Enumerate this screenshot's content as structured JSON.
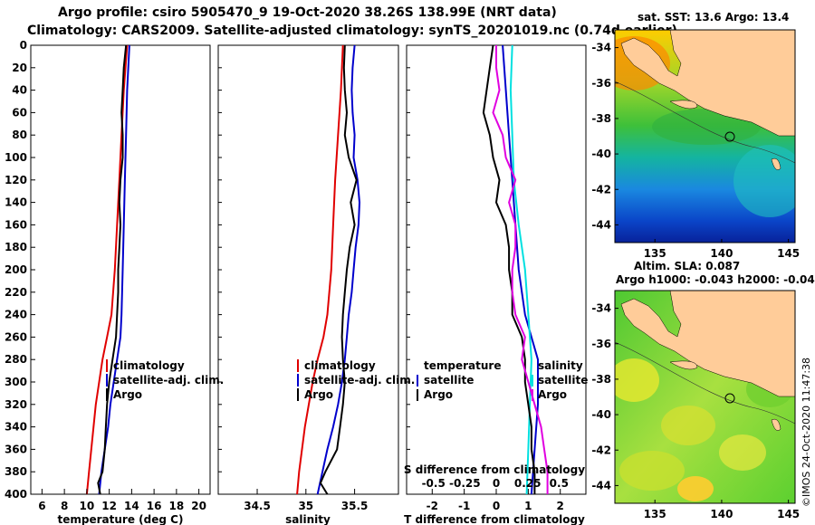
{
  "header": {
    "title_line1": "Argo profile: csiro 5905470_9 19-Oct-2020 38.26S 138.99E (NRT data)",
    "title_line2": "Climatology: CARS2009. Satellite-adjusted climatology: synTS_20201019.nc (0.74d earlier)"
  },
  "colors": {
    "argo": "#000000",
    "climatology": "#e00000",
    "satellite": "#0000cc",
    "salinity_diff": "#00e0e0",
    "temp_diff": "#e000e0"
  },
  "chart_data": [
    {
      "id": "temperature",
      "type": "line",
      "xlabel": "temperature (deg C)",
      "ylabel": "",
      "xlim": [
        5,
        21
      ],
      "ylim": [
        400,
        0
      ],
      "xticks": [
        6,
        8,
        10,
        12,
        14,
        16,
        18,
        20
      ],
      "yticks": [
        0,
        20,
        40,
        60,
        80,
        100,
        120,
        140,
        160,
        180,
        200,
        220,
        240,
        260,
        280,
        300,
        320,
        340,
        360,
        380,
        400
      ],
      "legend": [
        "climatology",
        "satellite-adj. clim.",
        "Argo"
      ],
      "series": [
        {
          "name": "climatology",
          "color": "#e00000",
          "depth": [
            0,
            40,
            80,
            120,
            160,
            200,
            240,
            260,
            280,
            300,
            320,
            340,
            360,
            380,
            400
          ],
          "values": [
            13.6,
            13.3,
            13.1,
            12.9,
            12.7,
            12.5,
            12.2,
            11.8,
            11.4,
            11.1,
            10.8,
            10.6,
            10.4,
            10.2,
            10.0
          ]
        },
        {
          "name": "satellite-adj. clim.",
          "color": "#0000cc",
          "depth": [
            0,
            40,
            80,
            120,
            160,
            200,
            240,
            260,
            280,
            300,
            320,
            340,
            360,
            380,
            400
          ],
          "values": [
            13.8,
            13.6,
            13.5,
            13.4,
            13.3,
            13.2,
            13.1,
            13.0,
            12.7,
            12.4,
            12.1,
            11.9,
            11.6,
            11.3,
            11.1
          ]
        },
        {
          "name": "Argo",
          "color": "#000000",
          "depth": [
            0,
            20,
            40,
            60,
            80,
            100,
            120,
            140,
            160,
            180,
            200,
            220,
            240,
            260,
            280,
            300,
            320,
            340,
            360,
            380,
            390,
            400
          ],
          "values": [
            13.5,
            13.3,
            13.2,
            13.1,
            13.2,
            13.2,
            13.0,
            12.9,
            13.0,
            12.9,
            12.8,
            12.8,
            12.7,
            12.6,
            12.3,
            12.0,
            11.8,
            11.7,
            11.6,
            11.4,
            11.0,
            11.2
          ]
        }
      ]
    },
    {
      "id": "salinity",
      "type": "line",
      "xlabel": "salinity",
      "ylabel": "",
      "xlim": [
        34.1,
        35.95
      ],
      "ylim": [
        400,
        0
      ],
      "xticks": [
        34.5,
        35,
        35.5
      ],
      "xticklabels": [
        "34.5",
        "35",
        "35.5"
      ],
      "legend": [
        "climatology",
        "satellite-adj. clim.",
        "Argo"
      ],
      "series": [
        {
          "name": "climatology",
          "color": "#e00000",
          "depth": [
            0,
            40,
            80,
            120,
            160,
            200,
            240,
            260,
            280,
            300,
            320,
            340,
            360,
            380,
            400
          ],
          "values": [
            35.38,
            35.36,
            35.33,
            35.3,
            35.28,
            35.26,
            35.22,
            35.18,
            35.12,
            35.07,
            35.03,
            34.99,
            34.96,
            34.93,
            34.91
          ]
        },
        {
          "name": "satellite-adj. clim.",
          "color": "#0000cc",
          "depth": [
            0,
            20,
            40,
            60,
            80,
            100,
            120,
            140,
            160,
            180,
            200,
            220,
            240,
            260,
            280,
            300,
            320,
            340,
            360,
            380,
            400
          ],
          "values": [
            35.5,
            35.48,
            35.47,
            35.48,
            35.5,
            35.49,
            35.53,
            35.55,
            35.54,
            35.51,
            35.49,
            35.47,
            35.44,
            35.42,
            35.4,
            35.37,
            35.33,
            35.28,
            35.22,
            35.17,
            35.12
          ]
        },
        {
          "name": "Argo",
          "color": "#000000",
          "depth": [
            0,
            20,
            40,
            60,
            80,
            100,
            120,
            140,
            160,
            180,
            200,
            220,
            240,
            260,
            280,
            300,
            320,
            340,
            360,
            380,
            390,
            400
          ],
          "values": [
            35.4,
            35.39,
            35.4,
            35.42,
            35.4,
            35.44,
            35.52,
            35.46,
            35.5,
            35.45,
            35.42,
            35.4,
            35.38,
            35.37,
            35.38,
            35.4,
            35.38,
            35.35,
            35.32,
            35.2,
            35.15,
            35.22
          ]
        }
      ]
    },
    {
      "id": "difference",
      "type": "line",
      "xlabel": "T difference from climatology",
      "xlabel_top": "S difference from climatology",
      "xlim": [
        -2.8,
        2.8
      ],
      "ylim": [
        400,
        0
      ],
      "xticks": [
        -2,
        -1,
        0,
        1,
        2
      ],
      "top_ticklabels": [
        "-0.5",
        "-0.25",
        "0",
        "0.25",
        "0.5"
      ],
      "legend_left": [
        "temperature",
        "satellite",
        "Argo"
      ],
      "legend_right": [
        "salinity",
        "satellite",
        "Argo"
      ],
      "series": [
        {
          "name": "T satellite",
          "color": "#0000cc",
          "depth": [
            0,
            40,
            80,
            120,
            160,
            200,
            240,
            280,
            300,
            320,
            360,
            400
          ],
          "values": [
            0.2,
            0.3,
            0.4,
            0.5,
            0.6,
            0.7,
            0.9,
            1.3,
            1.3,
            1.3,
            1.2,
            1.1
          ]
        },
        {
          "name": "S satellite",
          "color": "#00e0e0",
          "depth": [
            0,
            40,
            80,
            120,
            160,
            200,
            240,
            280,
            320,
            360,
            400
          ],
          "values": [
            0.5,
            0.45,
            0.5,
            0.55,
            0.7,
            0.9,
            1.0,
            1.1,
            1.05,
            1.0,
            0.95
          ]
        },
        {
          "name": "T Argo",
          "color": "#000000",
          "depth": [
            0,
            20,
            40,
            60,
            80,
            100,
            120,
            140,
            160,
            180,
            200,
            220,
            240,
            260,
            280,
            300,
            320,
            340,
            360,
            380,
            400
          ],
          "values": [
            -0.1,
            -0.2,
            -0.3,
            -0.4,
            -0.2,
            -0.1,
            0.1,
            0.0,
            0.3,
            0.4,
            0.4,
            0.5,
            0.5,
            0.8,
            0.9,
            0.9,
            1.0,
            1.1,
            1.1,
            1.2,
            1.2
          ]
        },
        {
          "name": "S Argo",
          "color": "#e000e0",
          "depth": [
            0,
            20,
            40,
            60,
            80,
            100,
            120,
            140,
            160,
            180,
            200,
            220,
            240,
            260,
            280,
            300,
            320,
            340,
            360,
            380,
            400
          ],
          "values": [
            0.0,
            0.0,
            0.1,
            -0.1,
            0.2,
            0.3,
            0.6,
            0.4,
            0.6,
            0.6,
            0.5,
            0.5,
            0.6,
            0.9,
            0.8,
            1.0,
            1.2,
            1.4,
            1.5,
            1.6,
            1.6
          ]
        }
      ]
    }
  ],
  "maps": {
    "sst": {
      "title": "sat. SST: 13.6 Argo: 13.4",
      "lat_ticks": [
        "-34",
        "-36",
        "-38",
        "-40",
        "-42",
        "-44"
      ],
      "lon_ticks": [
        "135",
        "140",
        "145"
      ],
      "lat_range": [
        -45,
        -33
      ],
      "lon_range": [
        132,
        145.5
      ],
      "profile_lat": -38.26,
      "profile_lon": 138.99
    },
    "sla": {
      "title_line1": "Altim. SLA: 0.087",
      "title_line2": "Argo h1000: -0.043 h2000: -0.04",
      "lat_ticks": [
        "-34",
        "-36",
        "-38",
        "-40",
        "-42",
        "-44"
      ],
      "lon_ticks": [
        "135",
        "140",
        "145"
      ],
      "lat_range": [
        -45,
        -33
      ],
      "lon_range": [
        132,
        145.5
      ],
      "profile_lat": -38.26,
      "profile_lon": 138.99
    }
  },
  "footer": {
    "credit": "©IMOS 24-Oct-2020 11:47:38"
  }
}
